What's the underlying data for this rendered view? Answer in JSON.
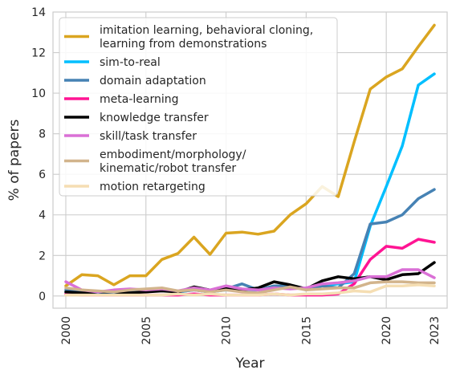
{
  "chart_data": {
    "type": "line",
    "title": "",
    "xlabel": "Year",
    "ylabel": "% of papers",
    "xlim": [
      1999.2,
      2023.8
    ],
    "ylim": [
      -0.6,
      14
    ],
    "xticks": [
      2000,
      2005,
      2010,
      2015,
      2020,
      2023
    ],
    "yticks": [
      0,
      2,
      4,
      6,
      8,
      10,
      12,
      14
    ],
    "grid": true,
    "legend_position": "top-left",
    "x": [
      2000,
      2001,
      2002,
      2003,
      2004,
      2005,
      2006,
      2007,
      2008,
      2009,
      2010,
      2011,
      2012,
      2013,
      2014,
      2015,
      2016,
      2017,
      2018,
      2019,
      2020,
      2021,
      2022,
      2023
    ],
    "series": [
      {
        "name": "imitation learning, behavioral cloning,\nlearning from demonstrations",
        "color": "#DAA520",
        "values": [
          0.5,
          1.05,
          1.0,
          0.55,
          1.0,
          1.0,
          1.8,
          2.1,
          2.9,
          2.05,
          3.1,
          3.15,
          3.05,
          3.2,
          4.0,
          4.55,
          5.4,
          4.9,
          7.6,
          10.2,
          10.8,
          11.2,
          12.3,
          13.35
        ]
      },
      {
        "name": "sim-to-real",
        "color": "#00BFFF",
        "values": [
          0.2,
          0.1,
          0.15,
          0.1,
          0.2,
          0.2,
          0.3,
          0.2,
          0.3,
          0.2,
          0.3,
          0.25,
          0.3,
          0.4,
          0.45,
          0.35,
          0.5,
          0.6,
          0.7,
          3.45,
          5.4,
          7.4,
          10.4,
          10.95
        ]
      },
      {
        "name": "domain adaptation",
        "color": "#4682B4",
        "values": [
          0.3,
          0.2,
          0.2,
          0.2,
          0.25,
          0.2,
          0.3,
          0.2,
          0.3,
          0.2,
          0.35,
          0.6,
          0.3,
          0.5,
          0.5,
          0.3,
          0.5,
          0.4,
          1.1,
          3.55,
          3.65,
          4.0,
          4.8,
          5.25
        ]
      },
      {
        "name": "meta-learning",
        "color": "#FF1493",
        "values": [
          0.1,
          0.05,
          0.05,
          0.05,
          0.05,
          0.05,
          0.05,
          0.05,
          0.1,
          0.05,
          0.05,
          0.05,
          0.05,
          0.1,
          0.05,
          0.05,
          0.05,
          0.1,
          0.6,
          1.8,
          2.45,
          2.35,
          2.8,
          2.65
        ]
      },
      {
        "name": "knowledge transfer",
        "color": "#000000",
        "values": [
          0.2,
          0.15,
          0.2,
          0.2,
          0.15,
          0.2,
          0.25,
          0.2,
          0.45,
          0.3,
          0.4,
          0.3,
          0.4,
          0.7,
          0.55,
          0.35,
          0.75,
          0.95,
          0.85,
          0.95,
          0.8,
          1.05,
          1.1,
          1.65
        ]
      },
      {
        "name": "skill/task transfer",
        "color": "#DA70D6",
        "values": [
          0.7,
          0.3,
          0.2,
          0.3,
          0.35,
          0.3,
          0.35,
          0.25,
          0.4,
          0.3,
          0.5,
          0.35,
          0.3,
          0.4,
          0.35,
          0.4,
          0.6,
          0.65,
          0.75,
          0.95,
          0.95,
          1.3,
          1.3,
          0.9
        ]
      },
      {
        "name": "embodiment/morphology/\nkinematic/robot transfer",
        "color": "#D2B48C",
        "values": [
          0.4,
          0.3,
          0.25,
          0.2,
          0.3,
          0.35,
          0.4,
          0.25,
          0.3,
          0.2,
          0.3,
          0.2,
          0.15,
          0.3,
          0.45,
          0.3,
          0.35,
          0.4,
          0.4,
          0.65,
          0.7,
          0.7,
          0.65,
          0.65
        ]
      },
      {
        "name": "motion retargeting",
        "color": "#F5DEB3",
        "values": [
          0.05,
          0.05,
          0.05,
          0.05,
          0.05,
          0.05,
          0.05,
          0.1,
          0.05,
          0.1,
          0.05,
          0.05,
          0.05,
          0.1,
          0.05,
          0.1,
          0.1,
          0.15,
          0.25,
          0.2,
          0.5,
          0.5,
          0.55,
          0.5
        ]
      }
    ]
  }
}
